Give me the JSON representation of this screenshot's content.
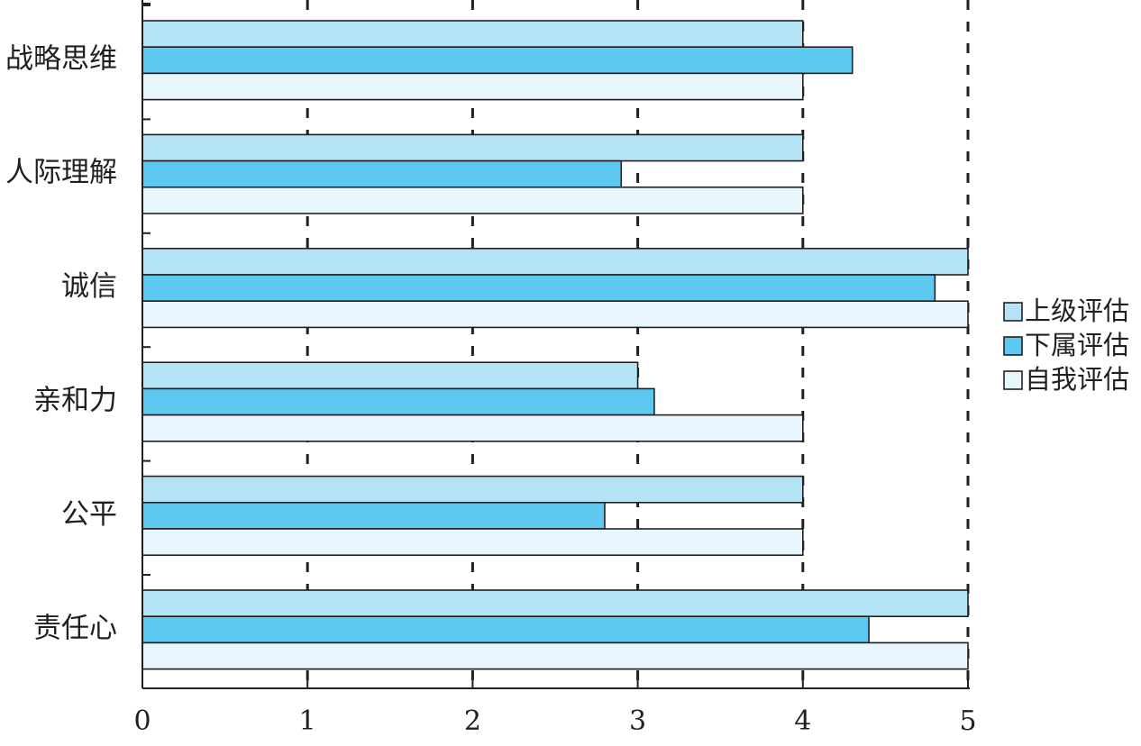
{
  "chart_data": {
    "type": "bar",
    "orientation": "horizontal",
    "categories": [
      "战略思维",
      "人际理解",
      "诚信",
      "亲和力",
      "公平",
      "责任心"
    ],
    "series": [
      {
        "name": "上级评估",
        "values": [
          4,
          4,
          5,
          3,
          4,
          5
        ],
        "color": "#b3e3f5"
      },
      {
        "name": "下属评估",
        "values": [
          4.3,
          2.9,
          4.8,
          3.1,
          2.8,
          4.4
        ],
        "color": "#5ec9f0"
      },
      {
        "name": "自我评估",
        "values": [
          4,
          4,
          5,
          4,
          4,
          5
        ],
        "color": "#e6f6fc"
      }
    ],
    "xlim": [
      0,
      5
    ],
    "x_ticks": [
      "0",
      "1",
      "2",
      "3",
      "4",
      "5"
    ],
    "grid": "vertical-dashed",
    "legend_position": "right"
  }
}
